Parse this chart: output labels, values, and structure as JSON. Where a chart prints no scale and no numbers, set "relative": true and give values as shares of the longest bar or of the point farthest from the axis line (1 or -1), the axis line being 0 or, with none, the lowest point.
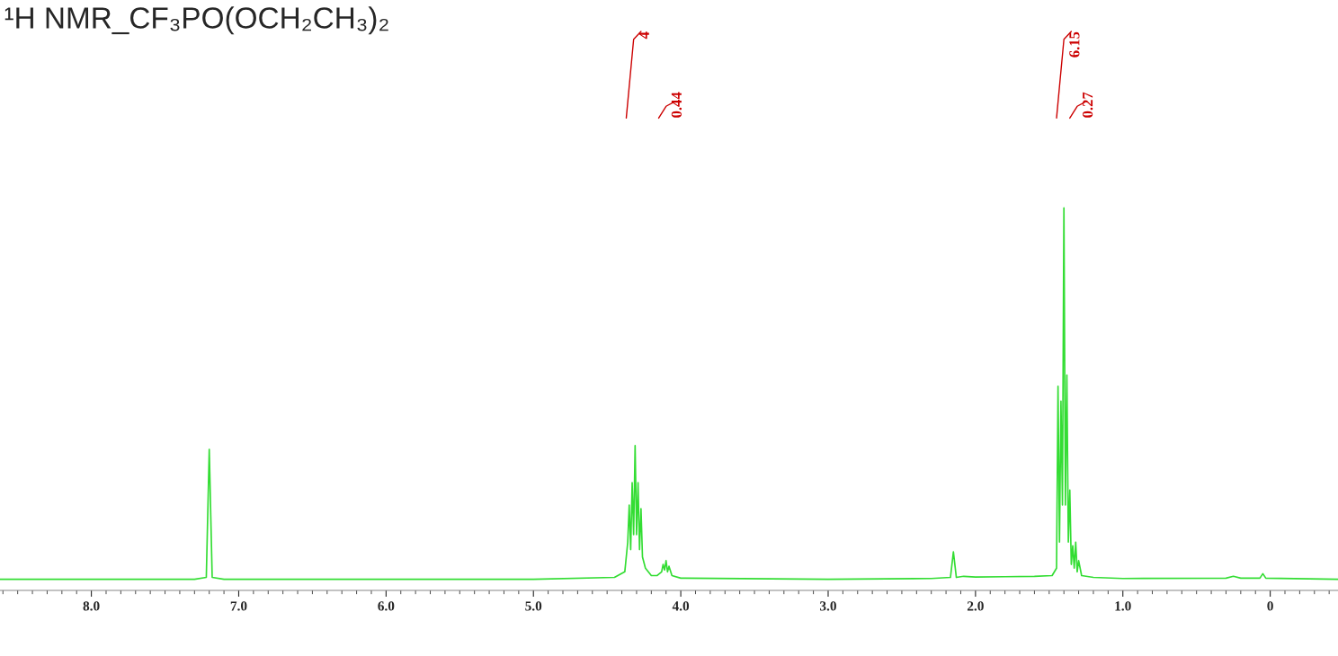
{
  "chart_data": {
    "type": "line",
    "title": "¹H NMR_CF₃PO(OCH₂CH₃)₂",
    "relative": true,
    "xlim": [
      8.62,
      -0.46
    ],
    "xticks": [
      {
        "value": 8,
        "label": "8.0"
      },
      {
        "value": 7,
        "label": "7.0"
      },
      {
        "value": 6,
        "label": "6.0"
      },
      {
        "value": 5,
        "label": "5.0"
      },
      {
        "value": 4,
        "label": "4.0"
      },
      {
        "value": 3,
        "label": "3.0"
      },
      {
        "value": 2,
        "label": "2.0"
      },
      {
        "value": 1,
        "label": "1.0"
      },
      0
    ],
    "x": [
      8.62,
      7.3,
      7.22,
      7.2,
      7.18,
      7.1,
      5.0,
      4.45,
      4.38,
      4.36,
      4.35,
      4.34,
      4.33,
      4.32,
      4.31,
      4.3,
      4.29,
      4.28,
      4.27,
      4.26,
      4.24,
      4.2,
      4.16,
      4.13,
      4.12,
      4.11,
      4.1,
      4.09,
      4.08,
      4.06,
      4.0,
      3.0,
      2.3,
      2.17,
      2.15,
      2.13,
      2.08,
      2.0,
      1.8,
      1.6,
      1.48,
      1.45,
      1.44,
      1.43,
      1.42,
      1.41,
      1.4,
      1.39,
      1.38,
      1.37,
      1.36,
      1.35,
      1.34,
      1.33,
      1.32,
      1.31,
      1.3,
      1.28,
      1.2,
      1.0,
      0.3,
      0.25,
      0.2,
      0.07,
      0.05,
      0.03,
      -0.46
    ],
    "series": [
      {
        "color": "#33dd33",
        "values": [
          0,
          0,
          0.005,
          0.35,
          0.005,
          0,
          0,
          0.005,
          0.02,
          0.1,
          0.2,
          0.08,
          0.26,
          0.12,
          0.36,
          0.12,
          0.26,
          0.08,
          0.19,
          0.06,
          0.03,
          0.01,
          0.01,
          0.02,
          0.04,
          0.025,
          0.05,
          0.02,
          0.035,
          0.01,
          0.003,
          0,
          0.002,
          0.005,
          0.074,
          0.005,
          0.008,
          0.006,
          0.007,
          0.008,
          0.01,
          0.03,
          0.52,
          0.1,
          0.48,
          0.2,
          1.0,
          0.2,
          0.55,
          0.1,
          0.24,
          0.04,
          0.09,
          0.03,
          0.1,
          0.02,
          0.05,
          0.01,
          0.005,
          0.002,
          0.003,
          0.008,
          0.003,
          0.003,
          0.015,
          0.003,
          0
        ]
      }
    ],
    "annotations": [
      "4",
      "0.44",
      "6.15",
      "0.27"
    ],
    "grid": false,
    "legend": false
  }
}
